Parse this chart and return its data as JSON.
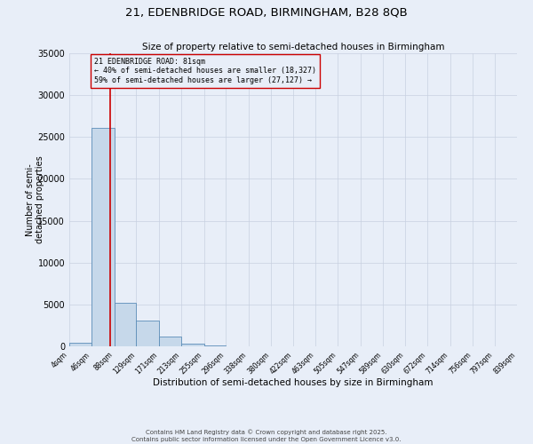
{
  "title_line1": "21, EDENBRIDGE ROAD, BIRMINGHAM, B28 8QB",
  "title_line2": "Size of property relative to semi-detached houses in Birmingham",
  "xlabel": "Distribution of semi-detached houses by size in Birmingham",
  "ylabel": "Number of semi-\ndetached properties",
  "bin_edges": [
    4,
    46,
    88,
    129,
    171,
    213,
    255,
    296,
    338,
    380,
    422,
    463,
    505,
    547,
    589,
    630,
    672,
    714,
    756,
    797,
    839
  ],
  "bin_counts": [
    400,
    26100,
    5200,
    3100,
    1200,
    350,
    150,
    50,
    20,
    10,
    5,
    3,
    2,
    1,
    1,
    1,
    0,
    0,
    0,
    0
  ],
  "bar_facecolor": "#c6d8ea",
  "bar_edgecolor": "#5b8db8",
  "property_size": 81,
  "vline_color": "#cc0000",
  "annotation_box_edgecolor": "#cc0000",
  "annotation_text_line1": "21 EDENBRIDGE ROAD: 81sqm",
  "annotation_text_line2": "← 40% of semi-detached houses are smaller (18,327)",
  "annotation_text_line3": "59% of semi-detached houses are larger (27,127) →",
  "bg_color": "#e8eef8",
  "grid_color": "#c8d0e0",
  "ylim": [
    0,
    35000
  ],
  "yticks": [
    0,
    5000,
    10000,
    15000,
    20000,
    25000,
    30000,
    35000
  ],
  "footer_line1": "Contains HM Land Registry data © Crown copyright and database right 2025.",
  "footer_line2": "Contains public sector information licensed under the Open Government Licence v3.0."
}
